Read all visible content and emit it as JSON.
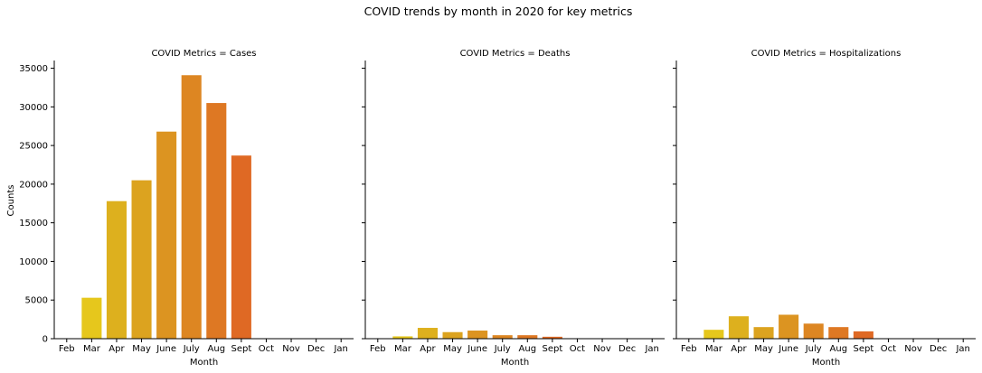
{
  "chart_data": {
    "type": "bar",
    "title": "COVID trends by month in 2020 for key metrics",
    "ylabel": "Counts",
    "xlabel": "Month",
    "ylim": [
      0,
      36000
    ],
    "yticks": [
      0,
      5000,
      10000,
      15000,
      20000,
      25000,
      30000,
      35000
    ],
    "shared_y": true,
    "grid": false,
    "categories": [
      "Feb",
      "Mar",
      "Apr",
      "May",
      "June",
      "July",
      "Aug",
      "Sept",
      "Oct",
      "Nov",
      "Dec",
      "Jan"
    ],
    "colors": [
      "#f0e01a",
      "#e6c71c",
      "#ddb01e",
      "#dca31f",
      "#dc9421",
      "#dd8622",
      "#de7823",
      "#df6924",
      "#df5a25",
      "#e04b26",
      "#e03c27",
      "#e12d28"
    ],
    "panels": [
      {
        "title": "COVID Metrics = Cases",
        "values": [
          0,
          5300,
          17800,
          20500,
          26800,
          34100,
          30500,
          23700,
          0,
          0,
          0,
          0
        ]
      },
      {
        "title": "COVID Metrics = Deaths",
        "values": [
          0,
          300,
          1400,
          850,
          1050,
          450,
          450,
          250,
          0,
          0,
          0,
          0
        ]
      },
      {
        "title": "COVID Metrics = Hospitalizations",
        "values": [
          0,
          1150,
          2900,
          1500,
          3100,
          1950,
          1500,
          950,
          0,
          0,
          0,
          0
        ]
      }
    ]
  }
}
